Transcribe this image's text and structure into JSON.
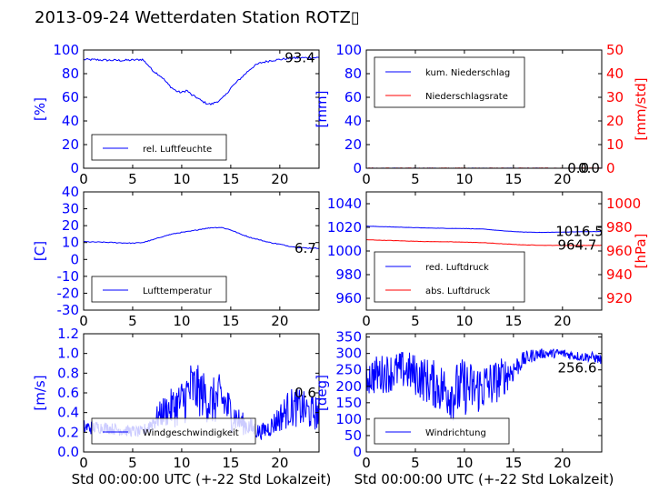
{
  "title": "2013-09-24 Wetterdaten Station ROTZ▯",
  "colors": {
    "blue": "#0000ff",
    "red": "#ff0000",
    "axis": "#000000"
  },
  "chart_data": [
    {
      "type": "line",
      "ylabel": "[%]",
      "ylabel_color": "#0000ff",
      "xlim": [
        0,
        24
      ],
      "ylim": [
        0,
        100
      ],
      "xticks": [
        0,
        5,
        10,
        15,
        20
      ],
      "yticks": [
        0,
        20,
        40,
        60,
        80,
        100
      ],
      "legend": {
        "position": "lower-left",
        "entries": [
          {
            "label": "rel. Luftfeuchte",
            "color": "#0000ff"
          }
        ]
      },
      "annotation": {
        "text": "93.4",
        "x": 20.5,
        "y": 93.4
      },
      "series": [
        {
          "name": "rel. Luftfeuchte",
          "color": "#0000ff",
          "x": [
            0,
            1,
            2,
            3,
            4,
            5,
            6,
            6.5,
            7,
            7.5,
            8,
            8.5,
            9,
            9.5,
            10,
            10.5,
            11,
            11.5,
            12,
            12.5,
            13,
            13.5,
            14,
            14.5,
            15,
            15.5,
            16,
            16.5,
            17,
            17.5,
            18,
            19,
            20,
            21,
            22,
            23,
            24
          ],
          "y": [
            92,
            91.8,
            91.5,
            91.3,
            91.2,
            91.5,
            92,
            88,
            83,
            80,
            77,
            72,
            68,
            65,
            64,
            66,
            62,
            60,
            57,
            55,
            54,
            56,
            58,
            62,
            68,
            72,
            76,
            80,
            84,
            87,
            89,
            91,
            92,
            93,
            93.4,
            93.5,
            93.6
          ]
        }
      ]
    },
    {
      "type": "line",
      "ylabel": "[mm]",
      "ylabel_color": "#0000ff",
      "y2label": "[mm/std]",
      "y2label_color": "#ff0000",
      "xlim": [
        0,
        24
      ],
      "ylim": [
        0,
        100
      ],
      "y2lim": [
        0,
        50
      ],
      "xticks": [
        0,
        5,
        10,
        15,
        20
      ],
      "yticks": [
        0,
        20,
        40,
        60,
        80,
        100
      ],
      "y2ticks": [
        0,
        10,
        20,
        30,
        40,
        50
      ],
      "legend": {
        "position": "upper-left",
        "entries": [
          {
            "label": "kum. Niederschlag",
            "color": "#0000ff"
          },
          {
            "label": "Niederschlagsrate",
            "color": "#ff0000"
          }
        ]
      },
      "annotations": [
        {
          "text": "0.0",
          "x": 20.5,
          "y": 0
        },
        {
          "text": "0.0",
          "x": 21.6,
          "y": 0
        }
      ],
      "series": [
        {
          "name": "kum. Niederschlag",
          "color": "#0000ff",
          "axis": "left",
          "x": [
            0,
            24
          ],
          "y": [
            0,
            0
          ]
        },
        {
          "name": "Niederschlagsrate",
          "color": "#ff0000",
          "axis": "right",
          "x": [
            0,
            24
          ],
          "y": [
            0,
            0
          ]
        }
      ]
    },
    {
      "type": "line",
      "ylabel": "[C]",
      "ylabel_color": "#0000ff",
      "xlim": [
        0,
        24
      ],
      "ylim": [
        -30,
        40
      ],
      "xticks": [
        0,
        5,
        10,
        15,
        20
      ],
      "yticks": [
        -30,
        -20,
        -10,
        0,
        10,
        20,
        30,
        40
      ],
      "legend": {
        "position": "lower-left",
        "entries": [
          {
            "label": "Lufttemperatur",
            "color": "#0000ff"
          }
        ]
      },
      "annotation": {
        "text": "6.7",
        "x": 21.5,
        "y": 6.7
      },
      "series": [
        {
          "name": "Lufttemperatur",
          "color": "#0000ff",
          "x": [
            0,
            1,
            2,
            3,
            4,
            5,
            6,
            7,
            8,
            9,
            10,
            11,
            12,
            13,
            14,
            15,
            16,
            17,
            18,
            19,
            20,
            21,
            22,
            23,
            24
          ],
          "y": [
            10.5,
            10.3,
            10.2,
            10,
            9.8,
            9.6,
            10,
            11.5,
            13.5,
            15,
            16,
            16.8,
            18,
            18.8,
            19,
            17.5,
            15,
            13,
            11.5,
            10,
            9,
            7.8,
            7,
            6.7,
            6.7
          ]
        }
      ]
    },
    {
      "type": "line",
      "ylabel": "",
      "ylabel_color": "#0000ff",
      "y2label": "[hPa]",
      "y2label_color": "#ff0000",
      "xlim": [
        0,
        24
      ],
      "ylim": [
        950,
        1050
      ],
      "y2lim": [
        910,
        1010
      ],
      "xticks": [
        0,
        5,
        10,
        15,
        20
      ],
      "yticks": [
        960,
        980,
        1000,
        1020,
        1040
      ],
      "y2ticks": [
        920,
        940,
        960,
        980,
        1000
      ],
      "legend": {
        "position": "lower-left",
        "entries": [
          {
            "label": "red. Luftdruck",
            "color": "#0000ff"
          },
          {
            "label": "abs. Luftdruck",
            "color": "#ff0000"
          }
        ]
      },
      "annotations": [
        {
          "text": "1016.5",
          "x": 19.3,
          "y": 1016.5
        },
        {
          "text": "964.7",
          "x": 19.5,
          "y": 1005
        }
      ],
      "series": [
        {
          "name": "red. Luftdruck",
          "color": "#0000ff",
          "axis": "left",
          "x": [
            0,
            2,
            4,
            6,
            8,
            10,
            12,
            14,
            16,
            18,
            20,
            22,
            24
          ],
          "y": [
            1021,
            1020.5,
            1020,
            1019.5,
            1019.2,
            1019,
            1018.5,
            1017,
            1016,
            1015.7,
            1016,
            1016.3,
            1016.5
          ]
        },
        {
          "name": "abs. Luftdruck",
          "color": "#ff0000",
          "axis": "right",
          "x": [
            0,
            2,
            4,
            6,
            8,
            10,
            12,
            14,
            16,
            18,
            20,
            22,
            24
          ],
          "y": [
            969.5,
            969,
            968.5,
            968,
            967.8,
            967.5,
            967,
            966,
            965.2,
            964.8,
            964.7,
            964.7,
            964.7
          ]
        }
      ]
    },
    {
      "type": "line",
      "xlabel": "Std 00:00:00 UTC (+-22 Std Lokalzeit)",
      "ylabel": "[m/s]",
      "ylabel_color": "#0000ff",
      "xlim": [
        0,
        24
      ],
      "ylim": [
        0,
        1.2
      ],
      "xticks": [
        0,
        5,
        10,
        15,
        20
      ],
      "yticks": [
        0,
        0.2,
        0.4,
        0.6,
        0.8,
        1.0,
        1.2
      ],
      "legend": {
        "position": "lower-left",
        "entries": [
          {
            "label": "Windgeschwindigkeit",
            "color": "#0000ff"
          }
        ]
      },
      "annotation": {
        "text": "0.6",
        "x": 21.5,
        "y": 0.6
      },
      "series": [
        {
          "name": "Windgeschwindigkeit",
          "color": "#0000ff",
          "noisy": true,
          "x": [
            0,
            2,
            4,
            6,
            7,
            8,
            9,
            10,
            11,
            12,
            13,
            14,
            15,
            16,
            17,
            18,
            19,
            20,
            21,
            22,
            23,
            24
          ],
          "y": [
            0.25,
            0.25,
            0.22,
            0.2,
            0.3,
            0.4,
            0.45,
            0.5,
            0.65,
            0.6,
            0.5,
            0.55,
            0.4,
            0.3,
            0.25,
            0.2,
            0.25,
            0.35,
            0.45,
            0.45,
            0.4,
            0.4
          ],
          "amp": [
            0.08,
            0.06,
            0.06,
            0.06,
            0.1,
            0.15,
            0.2,
            0.25,
            0.3,
            0.25,
            0.25,
            0.25,
            0.2,
            0.12,
            0.1,
            0.08,
            0.1,
            0.15,
            0.2,
            0.2,
            0.18,
            0.18
          ]
        }
      ]
    },
    {
      "type": "line",
      "xlabel": "Std 00:00:00 UTC (+-22 Std Lokalzeit)",
      "ylabel": "[deg]",
      "ylabel_color": "#0000ff",
      "xlim": [
        0,
        24
      ],
      "ylim": [
        0,
        360
      ],
      "xticks": [
        0,
        5,
        10,
        15,
        20
      ],
      "yticks": [
        0,
        50,
        100,
        150,
        200,
        250,
        300,
        350
      ],
      "legend": {
        "position": "lower-left",
        "entries": [
          {
            "label": "Windrichtung",
            "color": "#0000ff"
          }
        ]
      },
      "annotation": {
        "text": "256.6",
        "x": 19.5,
        "y": 256.6
      },
      "series": [
        {
          "name": "Windrichtung",
          "color": "#0000ff",
          "noisy": true,
          "x": [
            0,
            2,
            4,
            6,
            8,
            9,
            10,
            11,
            12,
            13,
            14,
            15,
            16,
            17,
            18,
            19,
            20,
            21,
            22,
            23,
            24
          ],
          "y": [
            230,
            240,
            250,
            220,
            190,
            180,
            200,
            190,
            200,
            210,
            230,
            250,
            280,
            295,
            300,
            300,
            300,
            295,
            290,
            290,
            280
          ],
          "amp": [
            60,
            60,
            60,
            70,
            80,
            90,
            90,
            80,
            80,
            70,
            60,
            40,
            25,
            20,
            15,
            15,
            15,
            15,
            15,
            15,
            15
          ]
        }
      ]
    }
  ]
}
